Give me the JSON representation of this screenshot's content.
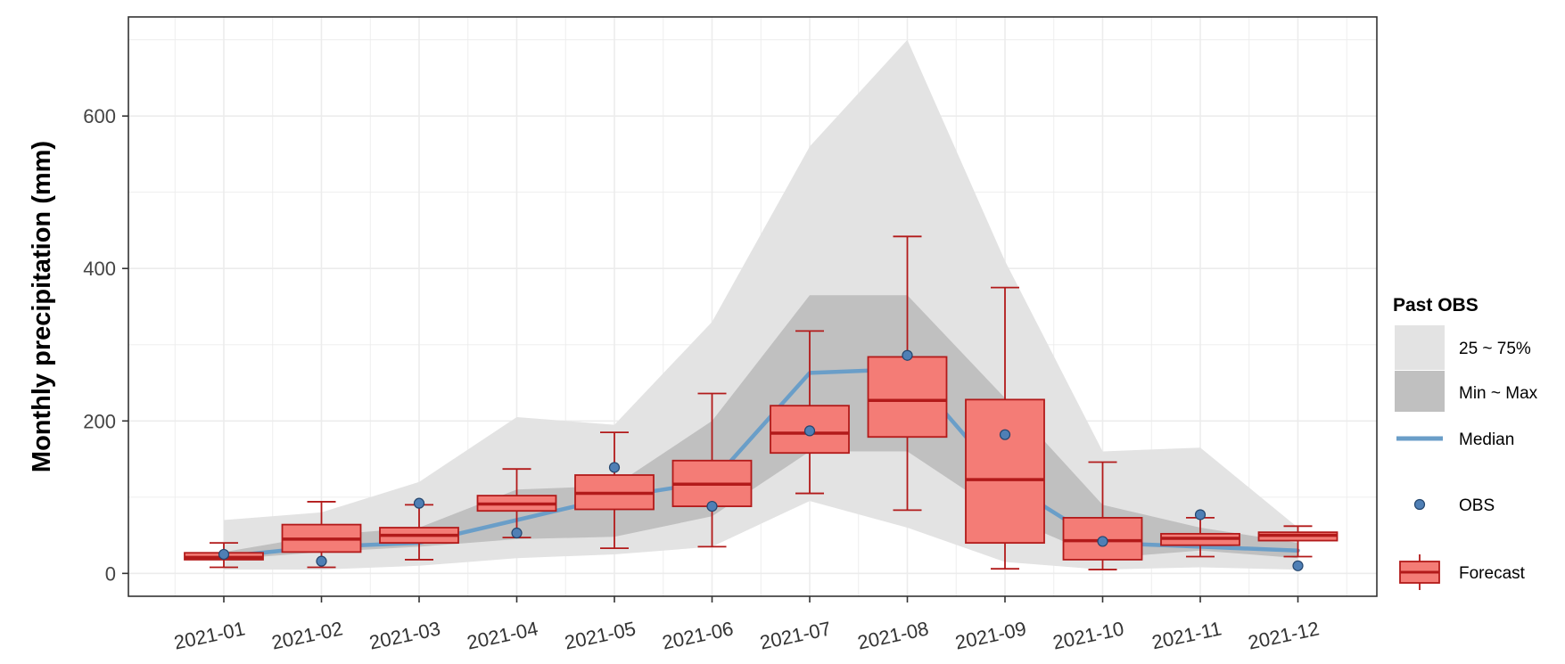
{
  "chart_data": {
    "type": "box",
    "title": "",
    "xlabel": "",
    "ylabel": "Monthly precipitation (mm)",
    "ylim": [
      -30,
      730
    ],
    "y_ticks": [
      0,
      200,
      400,
      600
    ],
    "grid": true,
    "legend_position": "right",
    "categories": [
      "2021-01",
      "2021-02",
      "2021-03",
      "2021-04",
      "2021-05",
      "2021-06",
      "2021-07",
      "2021-08",
      "2021-09",
      "2021-10",
      "2021-11",
      "2021-12"
    ],
    "legend": {
      "title": "Past OBS",
      "items": [
        {
          "key": "q25_75",
          "label": "25 ~ 75%"
        },
        {
          "key": "min_max",
          "label": "Min ~ Max"
        },
        {
          "key": "median",
          "label": "Median"
        },
        {
          "key": "obs",
          "label": "OBS"
        },
        {
          "key": "forecast",
          "label": "Forecast"
        }
      ]
    },
    "past_obs": {
      "band_outer": {
        "lower": [
          5,
          5,
          10,
          20,
          25,
          35,
          95,
          60,
          15,
          5,
          8,
          5
        ],
        "upper": [
          70,
          80,
          120,
          205,
          195,
          330,
          560,
          700,
          410,
          160,
          165,
          60
        ]
      },
      "band_inner": {
        "lower": [
          18,
          28,
          35,
          45,
          48,
          75,
          160,
          160,
          75,
          20,
          30,
          20
        ],
        "upper": [
          28,
          50,
          60,
          110,
          115,
          200,
          365,
          365,
          230,
          90,
          60,
          40
        ]
      },
      "median": [
        22,
        35,
        40,
        70,
        100,
        120,
        263,
        268,
        120,
        40,
        35,
        30
      ]
    },
    "obs": [
      25,
      16,
      92,
      53,
      139,
      88,
      187,
      286,
      182,
      42,
      77,
      10
    ],
    "forecast": [
      {
        "min": 8,
        "q1": 18,
        "median": 21,
        "q3": 27,
        "max": 40
      },
      {
        "min": 8,
        "q1": 28,
        "median": 45,
        "q3": 64,
        "max": 94
      },
      {
        "min": 18,
        "q1": 40,
        "median": 50,
        "q3": 60,
        "max": 90
      },
      {
        "min": 47,
        "q1": 82,
        "median": 91,
        "q3": 102,
        "max": 137
      },
      {
        "min": 33,
        "q1": 84,
        "median": 105,
        "q3": 129,
        "max": 185
      },
      {
        "min": 35,
        "q1": 88,
        "median": 117,
        "q3": 148,
        "max": 236
      },
      {
        "min": 105,
        "q1": 158,
        "median": 184,
        "q3": 220,
        "max": 318
      },
      {
        "min": 83,
        "q1": 179,
        "median": 227,
        "q3": 284,
        "max": 442
      },
      {
        "min": 6,
        "q1": 40,
        "median": 123,
        "q3": 228,
        "max": 375
      },
      {
        "min": 5,
        "q1": 18,
        "median": 43,
        "q3": 73,
        "max": 146
      },
      {
        "min": 22,
        "q1": 37,
        "median": 46,
        "q3": 52,
        "max": 73
      },
      {
        "min": 22,
        "q1": 43,
        "median": 50,
        "q3": 54,
        "max": 62
      }
    ]
  },
  "colors": {
    "band_outer": "#e3e3e3",
    "band_inner": "#c0c0c0",
    "median_line": "#6a9ec8",
    "obs_point_fill": "#4f7fb5",
    "obs_point_stroke": "#24466e",
    "box_fill": "#f47c76",
    "box_stroke": "#b21a1a",
    "grid": "#ececec",
    "panel_border": "#333333"
  }
}
